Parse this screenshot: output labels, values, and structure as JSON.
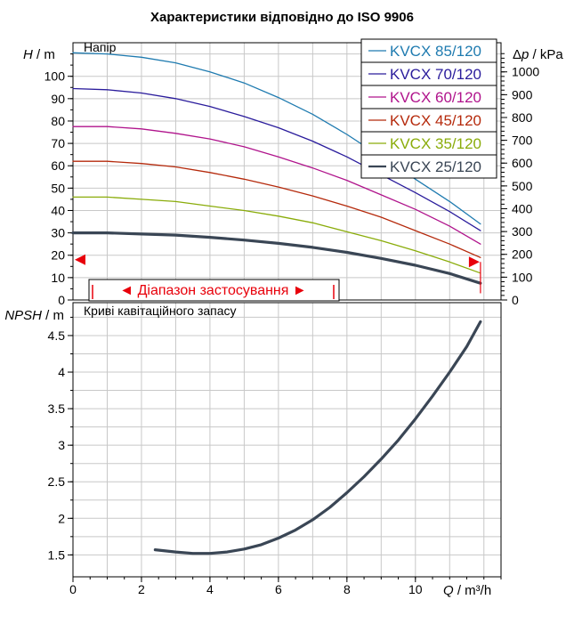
{
  "chart_data": [
    {
      "type": "line",
      "title": "Характеристики відповідно до ISO 9906",
      "panel_label": "Напір",
      "ylabel_left": {
        "var": "H",
        "unit": "m"
      },
      "ylabel_right": {
        "var": "p",
        "unit": "kPa",
        "prefix": "Δ"
      },
      "xlim": [
        0,
        12.5
      ],
      "ylim": [
        0,
        115
      ],
      "y_ticks": [
        0,
        10,
        20,
        30,
        40,
        50,
        60,
        70,
        80,
        90,
        100
      ],
      "y2_ticks": [
        0,
        100,
        200,
        300,
        400,
        500,
        600,
        700,
        800,
        900,
        1000
      ],
      "grid": true,
      "legend_position": "top-right",
      "range_label": "Діапазон застосування",
      "range_marker_y": 18,
      "series": [
        {
          "name": "KVCX 85/120",
          "color": "#1f7bb0",
          "width": 1.3,
          "x": [
            0,
            1,
            2,
            3,
            4,
            5,
            6,
            7,
            8,
            9,
            10,
            11,
            11.9
          ],
          "y": [
            110.5,
            110,
            108.5,
            106,
            102,
            97,
            90.5,
            83,
            74,
            64,
            54,
            44,
            34
          ]
        },
        {
          "name": "KVCX 70/120",
          "color": "#2a1c9c",
          "width": 1.3,
          "x": [
            0,
            1,
            2,
            3,
            4,
            5,
            6,
            7,
            8,
            9,
            10,
            11,
            11.9
          ],
          "y": [
            94.5,
            94,
            92.5,
            90,
            86.5,
            82,
            77,
            71,
            64,
            56,
            48,
            39.5,
            31
          ]
        },
        {
          "name": "KVCX 60/120",
          "color": "#b0148c",
          "width": 1.3,
          "x": [
            0,
            1,
            2,
            3,
            4,
            5,
            6,
            7,
            8,
            9,
            10,
            11,
            11.9
          ],
          "y": [
            77.5,
            77.5,
            76.5,
            74.5,
            72,
            68.5,
            64,
            59,
            53.5,
            47,
            40.5,
            33,
            25
          ]
        },
        {
          "name": "KVCX 45/120",
          "color": "#b52a0c",
          "width": 1.3,
          "x": [
            0,
            1,
            2,
            3,
            4,
            5,
            6,
            7,
            8,
            9,
            10,
            11,
            11.9
          ],
          "y": [
            62,
            62,
            61,
            59.5,
            57,
            54,
            50.5,
            46.5,
            42,
            37,
            31,
            25,
            19
          ]
        },
        {
          "name": "KVCX 35/120",
          "color": "#8aac0a",
          "width": 1.3,
          "x": [
            0,
            1,
            2,
            3,
            4,
            5,
            6,
            7,
            8,
            9,
            10,
            11,
            11.9
          ],
          "y": [
            46,
            46,
            45,
            44,
            42,
            40,
            37.5,
            34.5,
            30.5,
            26.5,
            22,
            17,
            12
          ]
        },
        {
          "name": "KVCX 25/120",
          "color": "#3a4655",
          "width": 3.2,
          "x": [
            0,
            1,
            2,
            3,
            4,
            5,
            6,
            7,
            8,
            9,
            10,
            11,
            11.9
          ],
          "y": [
            30,
            30,
            29.5,
            29,
            28,
            26.8,
            25.3,
            23.5,
            21.3,
            18.6,
            15.5,
            11.8,
            7.5
          ]
        }
      ]
    },
    {
      "type": "line",
      "panel_label": "Криві кавітаційного запасу",
      "ylabel": {
        "var": "NPSH",
        "unit": "m"
      },
      "xlabel": {
        "var": "Q",
        "unit": "m³/h"
      },
      "xlim": [
        0,
        12.5
      ],
      "ylim": [
        1.2,
        4.95
      ],
      "x_ticks": [
        0,
        2,
        4,
        6,
        8,
        10
      ],
      "y_ticks": [
        1.5,
        2,
        2.5,
        3,
        3.5,
        4,
        4.5
      ],
      "grid": true,
      "series": [
        {
          "color": "#3a4655",
          "width": 3.2,
          "x": [
            2.4,
            3,
            3.5,
            4,
            4.5,
            5,
            5.5,
            6,
            6.5,
            7,
            7.5,
            8,
            8.5,
            9,
            9.5,
            10,
            10.5,
            11,
            11.5,
            11.9
          ],
          "y": [
            1.57,
            1.54,
            1.52,
            1.52,
            1.54,
            1.58,
            1.64,
            1.73,
            1.84,
            1.98,
            2.15,
            2.35,
            2.57,
            2.81,
            3.07,
            3.36,
            3.67,
            4.0,
            4.35,
            4.69
          ]
        }
      ]
    }
  ]
}
